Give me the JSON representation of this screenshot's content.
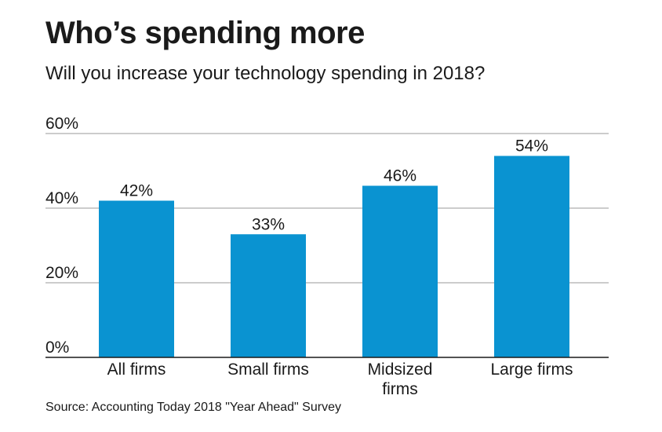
{
  "title": "Who’s spending more",
  "subtitle": "Will you increase your technology spending in 2018?",
  "source": "Source: Accounting Today 2018 \"Year Ahead\" Survey",
  "colors": {
    "bar": "#0a93d1",
    "grid": "#9a9a9a",
    "axis": "#1a1a1a"
  },
  "chart_data": {
    "type": "bar",
    "title": "Who’s spending more",
    "subtitle": "Will you increase your technology spending in 2018?",
    "categories": [
      "All firms",
      "Small firms",
      "Midsized firms",
      "Large firms"
    ],
    "category_lines": [
      [
        "All firms"
      ],
      [
        "Small firms"
      ],
      [
        "Midsized",
        "firms"
      ],
      [
        "Large firms"
      ]
    ],
    "values": [
      42,
      33,
      46,
      54
    ],
    "data_labels": [
      "42%",
      "33%",
      "46%",
      "54%"
    ],
    "ylim": [
      0,
      60
    ],
    "yticks": [
      0,
      20,
      40,
      60
    ],
    "ytick_labels": [
      "0%",
      "20%",
      "40%",
      "60%"
    ],
    "xlabel": "",
    "ylabel": "",
    "grid": true
  }
}
